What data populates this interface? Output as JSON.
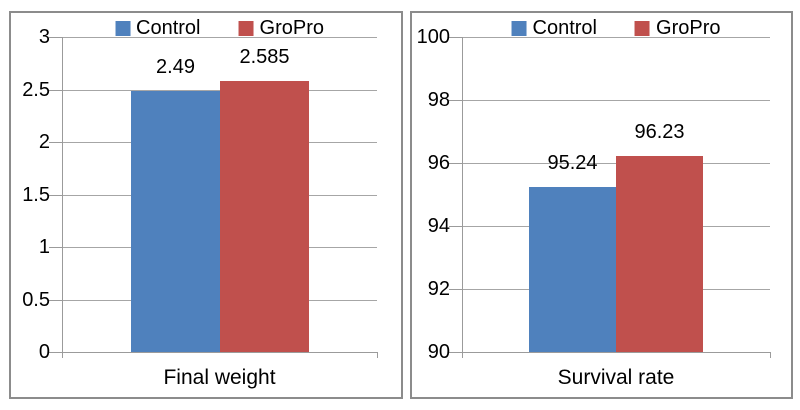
{
  "page": {
    "background": "#ffffff",
    "text_color": "#000000"
  },
  "colors": {
    "control_series": "#4F81BD",
    "gropro_series": "#C0504D",
    "gridline": "#A6A6A6",
    "axis": "#9B9B9B",
    "panel_border": "#8C8C8C"
  },
  "chart_data": [
    {
      "type": "bar",
      "title": "",
      "xlabel": "",
      "ylabel": "",
      "categories": [
        "Final weight"
      ],
      "series": [
        {
          "name": "Control",
          "color": "#4F81BD",
          "values": [
            2.49
          ],
          "data_labels": [
            "2.49"
          ]
        },
        {
          "name": "GroPro",
          "color": "#C0504D",
          "values": [
            2.585
          ],
          "data_labels": [
            "2.585"
          ]
        }
      ],
      "ylim": [
        0,
        3
      ],
      "ytick_labels_top_to_bottom": [
        "3",
        "2.5",
        "2",
        "1.5",
        "1",
        "0.5",
        "0"
      ],
      "grid": true,
      "legend_position": "top"
    },
    {
      "type": "bar",
      "title": "",
      "xlabel": "",
      "ylabel": "",
      "categories": [
        "Survival rate"
      ],
      "series": [
        {
          "name": "Control",
          "color": "#4F81BD",
          "values": [
            95.24
          ],
          "data_labels": [
            "95.24"
          ]
        },
        {
          "name": "GroPro",
          "color": "#C0504D",
          "values": [
            96.23
          ],
          "data_labels": [
            "96.23"
          ]
        }
      ],
      "ylim": [
        90,
        100
      ],
      "ytick_labels_top_to_bottom": [
        "100",
        "98",
        "96",
        "94",
        "92",
        "90"
      ],
      "grid": true,
      "legend_position": "top"
    }
  ]
}
